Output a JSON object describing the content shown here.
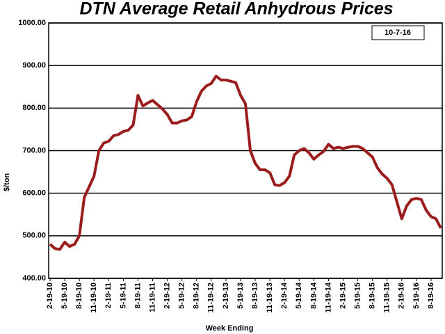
{
  "chart_data": {
    "type": "line",
    "title": "DTN Average Retail Anhydrous Prices",
    "annotation": "10-7-16",
    "y_label": "$/ton",
    "x_label": "Week Ending",
    "categories": [
      "2-19-10",
      null,
      null,
      "5-19-10",
      null,
      null,
      "8-19-10",
      null,
      null,
      "11-19-10",
      null,
      null,
      "2-19-11",
      null,
      null,
      "5-19-11",
      null,
      null,
      "8-19-11",
      null,
      null,
      "11-19-11",
      null,
      null,
      "2-19-12",
      null,
      null,
      "5-19-12",
      null,
      null,
      "8-19-12",
      null,
      null,
      "11-19-12",
      null,
      null,
      "2-19-13",
      null,
      null,
      "5-19-13",
      null,
      null,
      "8-19-13",
      null,
      null,
      "11-19-13",
      null,
      null,
      "2-19-14",
      null,
      null,
      "5-19-14",
      null,
      null,
      "8-19-14",
      null,
      null,
      "11-19-14",
      null,
      null,
      "2-19-15",
      null,
      null,
      "5-19-15",
      null,
      null,
      "8-19-15",
      null,
      null,
      "11-19-15",
      null,
      null,
      "2-19-16",
      null,
      null,
      "5-19-16",
      null,
      null,
      "8-19-16",
      null,
      null
    ],
    "series": [
      {
        "color": "#9b1c1c",
        "values": [
          480,
          470,
          468,
          485,
          475,
          480,
          500,
          590,
          615,
          640,
          700,
          718,
          722,
          735,
          738,
          745,
          748,
          760,
          830,
          805,
          812,
          818,
          808,
          798,
          785,
          765,
          765,
          770,
          772,
          780,
          815,
          840,
          852,
          858,
          875,
          866,
          866,
          863,
          860,
          830,
          810,
          700,
          670,
          655,
          655,
          648,
          620,
          618,
          625,
          640,
          690,
          700,
          705,
          695,
          680,
          690,
          698,
          715,
          705,
          708,
          705,
          708,
          710,
          710,
          705,
          695,
          685,
          660,
          645,
          635,
          620,
          580,
          540,
          570,
          585,
          588,
          585,
          560,
          545,
          540,
          518
        ]
      }
    ],
    "ylim": [
      400,
      1000
    ],
    "yticks": [
      {
        "value": 400,
        "label": "400.00"
      },
      {
        "value": 500,
        "label": "500.00"
      },
      {
        "value": 600,
        "label": "600.00"
      },
      {
        "value": 700,
        "label": "700.00"
      },
      {
        "value": 800,
        "label": "800.00"
      },
      {
        "value": 900,
        "label": "900.00"
      },
      {
        "value": 1000,
        "label": "1000.00"
      }
    ],
    "grid": true
  }
}
